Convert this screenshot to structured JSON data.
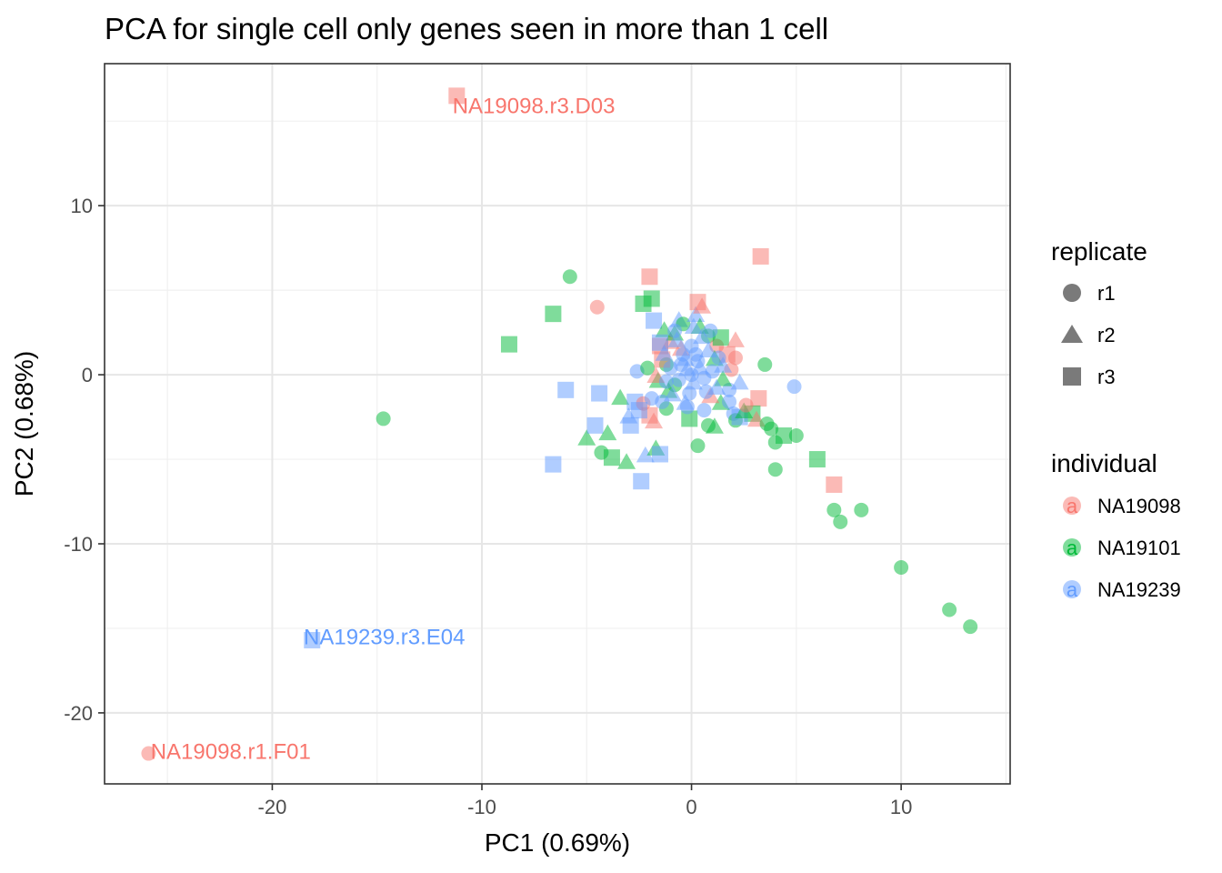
{
  "chart_data": {
    "type": "scatter",
    "title": "PCA for single cell only genes seen in more than 1 cell",
    "xlabel": "PC1 (0.69%)",
    "ylabel": "PC2 (0.68%)",
    "xlim": [
      -28,
      15.2
    ],
    "ylim": [
      -24.2,
      18.4
    ],
    "xticks": [
      -20,
      -10,
      0,
      10
    ],
    "yticks": [
      -20,
      -10,
      0,
      10
    ],
    "xtick_labels": [
      "-20",
      "-10",
      "0",
      "10"
    ],
    "ytick_labels": [
      "-20",
      "-10",
      "0",
      "10"
    ],
    "grid": true,
    "colors": {
      "NA19098": "#F8766D",
      "NA19101": "#00BA38",
      "NA19239": "#619CFF"
    },
    "legend": {
      "position": "right",
      "shape_title": "replicate",
      "shape_items": [
        {
          "key": "r1",
          "label": "r1",
          "shape": "circle"
        },
        {
          "key": "r2",
          "label": "r2",
          "shape": "triangle"
        },
        {
          "key": "r3",
          "label": "r3",
          "shape": "square"
        }
      ],
      "color_title": "individual",
      "color_items": [
        {
          "key": "NA19098",
          "label": "NA19098",
          "glyph": "a"
        },
        {
          "key": "NA19101",
          "label": "NA19101",
          "glyph": "a"
        },
        {
          "key": "NA19239",
          "label": "NA19239",
          "glyph": "a"
        }
      ]
    },
    "annotations": [
      {
        "text": "NA19098.r3.D03",
        "x": -11.4,
        "y": 15.9,
        "color": "NA19098"
      },
      {
        "text": "NA19239.r3.E04",
        "x": -18.5,
        "y": -15.5,
        "color": "NA19239"
      },
      {
        "text": "NA19098.r1.F01",
        "x": -25.8,
        "y": -22.3,
        "color": "NA19098"
      }
    ],
    "points": [
      {
        "x": -11.2,
        "y": 16.5,
        "rep": "r3",
        "ind": "NA19098"
      },
      {
        "x": -18.1,
        "y": -15.7,
        "rep": "r3",
        "ind": "NA19239"
      },
      {
        "x": -25.9,
        "y": -22.4,
        "rep": "r1",
        "ind": "NA19098"
      },
      {
        "x": -14.7,
        "y": -2.6,
        "rep": "r1",
        "ind": "NA19101"
      },
      {
        "x": -8.7,
        "y": 1.8,
        "rep": "r3",
        "ind": "NA19101"
      },
      {
        "x": -6.6,
        "y": 3.6,
        "rep": "r3",
        "ind": "NA19101"
      },
      {
        "x": -5.8,
        "y": 5.8,
        "rep": "r1",
        "ind": "NA19101"
      },
      {
        "x": -4.5,
        "y": 4.0,
        "rep": "r1",
        "ind": "NA19098"
      },
      {
        "x": -6.0,
        "y": -0.9,
        "rep": "r3",
        "ind": "NA19239"
      },
      {
        "x": -6.6,
        "y": -5.3,
        "rep": "r3",
        "ind": "NA19239"
      },
      {
        "x": -4.4,
        "y": -1.1,
        "rep": "r3",
        "ind": "NA19239"
      },
      {
        "x": -5.0,
        "y": -3.8,
        "rep": "r2",
        "ind": "NA19101"
      },
      {
        "x": -4.6,
        "y": -3.0,
        "rep": "r3",
        "ind": "NA19239"
      },
      {
        "x": -4.3,
        "y": -4.6,
        "rep": "r1",
        "ind": "NA19101"
      },
      {
        "x": -4.0,
        "y": -3.5,
        "rep": "r2",
        "ind": "NA19101"
      },
      {
        "x": -3.8,
        "y": -4.9,
        "rep": "r3",
        "ind": "NA19101"
      },
      {
        "x": -3.4,
        "y": -1.4,
        "rep": "r2",
        "ind": "NA19101"
      },
      {
        "x": -3.1,
        "y": -5.2,
        "rep": "r2",
        "ind": "NA19101"
      },
      {
        "x": -3.0,
        "y": -2.5,
        "rep": "r2",
        "ind": "NA19239"
      },
      {
        "x": -2.9,
        "y": -3.0,
        "rep": "r3",
        "ind": "NA19239"
      },
      {
        "x": -2.7,
        "y": -1.6,
        "rep": "r3",
        "ind": "NA19239"
      },
      {
        "x": -2.6,
        "y": 0.2,
        "rep": "r1",
        "ind": "NA19239"
      },
      {
        "x": -2.4,
        "y": -6.3,
        "rep": "r3",
        "ind": "NA19239"
      },
      {
        "x": -2.3,
        "y": 4.2,
        "rep": "r3",
        "ind": "NA19101"
      },
      {
        "x": -2.0,
        "y": 5.8,
        "rep": "r3",
        "ind": "NA19098"
      },
      {
        "x": -1.9,
        "y": 4.5,
        "rep": "r3",
        "ind": "NA19101"
      },
      {
        "x": -1.8,
        "y": 3.2,
        "rep": "r3",
        "ind": "NA19239"
      },
      {
        "x": -2.2,
        "y": -4.8,
        "rep": "r2",
        "ind": "NA19239"
      },
      {
        "x": -1.7,
        "y": -4.4,
        "rep": "r2",
        "ind": "NA19101"
      },
      {
        "x": -1.5,
        "y": -4.7,
        "rep": "r3",
        "ind": "NA19239"
      },
      {
        "x": -1.8,
        "y": -2.8,
        "rep": "r2",
        "ind": "NA19098"
      },
      {
        "x": -2.0,
        "y": -2.4,
        "rep": "r3",
        "ind": "NA19098"
      },
      {
        "x": -2.3,
        "y": -1.7,
        "rep": "r1",
        "ind": "NA19098"
      },
      {
        "x": -2.5,
        "y": -2.1,
        "rep": "r3",
        "ind": "NA19239"
      },
      {
        "x": -1.9,
        "y": -1.4,
        "rep": "r1",
        "ind": "NA19239"
      },
      {
        "x": -1.5,
        "y": 1.7,
        "rep": "r3",
        "ind": "NA19098"
      },
      {
        "x": -1.3,
        "y": 2.6,
        "rep": "r2",
        "ind": "NA19101"
      },
      {
        "x": -1.2,
        "y": -2.0,
        "rep": "r1",
        "ind": "NA19101"
      },
      {
        "x": -1.0,
        "y": 1.9,
        "rep": "r2",
        "ind": "NA19098"
      },
      {
        "x": -0.8,
        "y": 2.4,
        "rep": "r2",
        "ind": "NA19101"
      },
      {
        "x": -0.6,
        "y": 3.2,
        "rep": "r2",
        "ind": "NA19239"
      },
      {
        "x": -0.4,
        "y": 3.0,
        "rep": "r1",
        "ind": "NA19101"
      },
      {
        "x": 0.2,
        "y": 3.5,
        "rep": "r2",
        "ind": "NA19239"
      },
      {
        "x": 0.3,
        "y": 4.3,
        "rep": "r3",
        "ind": "NA19098"
      },
      {
        "x": 0.5,
        "y": 4.0,
        "rep": "r2",
        "ind": "NA19098"
      },
      {
        "x": 0.4,
        "y": 2.8,
        "rep": "r2",
        "ind": "NA19101"
      },
      {
        "x": 0.8,
        "y": 2.3,
        "rep": "r1",
        "ind": "NA19101"
      },
      {
        "x": 1.2,
        "y": 1.7,
        "rep": "r1",
        "ind": "NA19098"
      },
      {
        "x": 1.4,
        "y": 2.2,
        "rep": "r3",
        "ind": "NA19101"
      },
      {
        "x": 1.7,
        "y": 1.2,
        "rep": "r3",
        "ind": "NA19098"
      },
      {
        "x": 2.1,
        "y": 1.0,
        "rep": "r1",
        "ind": "NA19098"
      },
      {
        "x": 2.1,
        "y": 2.0,
        "rep": "r2",
        "ind": "NA19098"
      },
      {
        "x": 3.3,
        "y": 7.0,
        "rep": "r3",
        "ind": "NA19098"
      },
      {
        "x": 3.5,
        "y": 0.6,
        "rep": "r1",
        "ind": "NA19101"
      },
      {
        "x": 4.9,
        "y": -0.7,
        "rep": "r1",
        "ind": "NA19239"
      },
      {
        "x": 3.2,
        "y": -1.4,
        "rep": "r3",
        "ind": "NA19098"
      },
      {
        "x": 2.9,
        "y": -2.3,
        "rep": "r3",
        "ind": "NA19101"
      },
      {
        "x": 3.1,
        "y": -2.7,
        "rep": "r2",
        "ind": "NA19098"
      },
      {
        "x": 3.6,
        "y": -2.9,
        "rep": "r1",
        "ind": "NA19101"
      },
      {
        "x": 3.8,
        "y": -3.2,
        "rep": "r1",
        "ind": "NA19101"
      },
      {
        "x": 4.0,
        "y": -4.0,
        "rep": "r1",
        "ind": "NA19101"
      },
      {
        "x": 4.4,
        "y": -3.6,
        "rep": "r3",
        "ind": "NA19101"
      },
      {
        "x": 5.0,
        "y": -3.6,
        "rep": "r1",
        "ind": "NA19101"
      },
      {
        "x": 4.0,
        "y": -5.6,
        "rep": "r1",
        "ind": "NA19101"
      },
      {
        "x": 6.0,
        "y": -5.0,
        "rep": "r3",
        "ind": "NA19101"
      },
      {
        "x": 6.8,
        "y": -6.5,
        "rep": "r3",
        "ind": "NA19098"
      },
      {
        "x": 6.8,
        "y": -8.0,
        "rep": "r1",
        "ind": "NA19101"
      },
      {
        "x": 7.1,
        "y": -8.7,
        "rep": "r1",
        "ind": "NA19101"
      },
      {
        "x": 8.1,
        "y": -8.0,
        "rep": "r1",
        "ind": "NA19101"
      },
      {
        "x": 10.0,
        "y": -11.4,
        "rep": "r1",
        "ind": "NA19101"
      },
      {
        "x": 12.3,
        "y": -13.9,
        "rep": "r1",
        "ind": "NA19101"
      },
      {
        "x": 13.3,
        "y": -14.9,
        "rep": "r1",
        "ind": "NA19101"
      },
      {
        "x": 0.3,
        "y": -4.2,
        "rep": "r1",
        "ind": "NA19101"
      },
      {
        "x": 0.8,
        "y": -3.0,
        "rep": "r1",
        "ind": "NA19101"
      },
      {
        "x": 1.1,
        "y": -3.1,
        "rep": "r2",
        "ind": "NA19101"
      },
      {
        "x": -0.1,
        "y": -2.6,
        "rep": "r3",
        "ind": "NA19101"
      },
      {
        "x": 2.0,
        "y": -2.3,
        "rep": "r1",
        "ind": "NA19239"
      },
      {
        "x": 2.1,
        "y": -2.7,
        "rep": "r1",
        "ind": "NA19101"
      },
      {
        "x": 2.3,
        "y": -2.5,
        "rep": "r3",
        "ind": "NA19239"
      },
      {
        "x": 2.5,
        "y": -2.2,
        "rep": "r2",
        "ind": "NA19101"
      },
      {
        "x": 2.6,
        "y": -1.8,
        "rep": "r1",
        "ind": "NA19098"
      },
      {
        "x": 1.4,
        "y": -1.7,
        "rep": "r2",
        "ind": "NA19101"
      },
      {
        "x": 1.8,
        "y": -0.9,
        "rep": "r1",
        "ind": "NA19239"
      },
      {
        "x": 2.3,
        "y": -0.5,
        "rep": "r2",
        "ind": "NA19239"
      },
      {
        "x": 1.9,
        "y": 0.3,
        "rep": "r1",
        "ind": "NA19098"
      },
      {
        "x": -1.2,
        "y": 0.6,
        "rep": "r1",
        "ind": "NA19101"
      },
      {
        "x": -1.6,
        "y": -0.4,
        "rep": "r2",
        "ind": "NA19101"
      },
      {
        "x": -2.1,
        "y": 0.4,
        "rep": "r1",
        "ind": "NA19101"
      },
      {
        "x": -1.7,
        "y": -0.1,
        "rep": "r2",
        "ind": "NA19098"
      },
      {
        "x": -1.4,
        "y": 0.9,
        "rep": "r3",
        "ind": "NA19098"
      },
      {
        "x": -1.1,
        "y": -1.0,
        "rep": "r2",
        "ind": "NA19101"
      },
      {
        "x": -0.8,
        "y": -0.6,
        "rep": "r1",
        "ind": "NA19101"
      },
      {
        "x": -0.5,
        "y": 1.5,
        "rep": "r2",
        "ind": "NA19098"
      },
      {
        "x": 1.1,
        "y": 0.9,
        "rep": "r2",
        "ind": "NA19101"
      },
      {
        "x": 1.5,
        "y": -0.3,
        "rep": "r2",
        "ind": "NA19101"
      },
      {
        "x": 0.9,
        "y": -1.3,
        "rep": "r2",
        "ind": "NA19098"
      },
      {
        "x": 0.6,
        "y": -2.1,
        "rep": "r1",
        "ind": "NA19239"
      },
      {
        "x": -0.3,
        "y": -1.7,
        "rep": "r2",
        "ind": "NA19239"
      },
      {
        "x": -1.5,
        "y": 1.9,
        "rep": "r3",
        "ind": "NA19239"
      },
      {
        "x": -1.3,
        "y": 1.2,
        "rep": "r2",
        "ind": "NA19239"
      },
      {
        "x": -1.0,
        "y": 0.4,
        "rep": "r1",
        "ind": "NA19239"
      },
      {
        "x": -0.7,
        "y": 2.0,
        "rep": "r2",
        "ind": "NA19239"
      },
      {
        "x": -0.4,
        "y": 1.2,
        "rep": "r1",
        "ind": "NA19239"
      },
      {
        "x": -0.2,
        "y": 0.3,
        "rep": "r2",
        "ind": "NA19239"
      },
      {
        "x": 0.0,
        "y": 1.7,
        "rep": "r1",
        "ind": "NA19239"
      },
      {
        "x": 0.1,
        "y": -0.5,
        "rep": "r2",
        "ind": "NA19239"
      },
      {
        "x": 0.3,
        "y": 0.8,
        "rep": "r1",
        "ind": "NA19239"
      },
      {
        "x": 0.5,
        "y": 2.2,
        "rep": "r2",
        "ind": "NA19239"
      },
      {
        "x": 0.6,
        "y": -0.2,
        "rep": "r1",
        "ind": "NA19239"
      },
      {
        "x": 0.8,
        "y": 1.4,
        "rep": "r2",
        "ind": "NA19239"
      },
      {
        "x": 1.0,
        "y": 0.2,
        "rep": "r1",
        "ind": "NA19239"
      },
      {
        "x": 1.2,
        "y": -0.8,
        "rep": "r2",
        "ind": "NA19239"
      },
      {
        "x": 1.3,
        "y": 1.0,
        "rep": "r1",
        "ind": "NA19239"
      },
      {
        "x": -0.9,
        "y": -1.2,
        "rep": "r2",
        "ind": "NA19239"
      },
      {
        "x": -0.6,
        "y": -0.3,
        "rep": "r1",
        "ind": "NA19239"
      },
      {
        "x": -0.3,
        "y": 0.9,
        "rep": "r2",
        "ind": "NA19239"
      },
      {
        "x": 0.0,
        "y": 0.0,
        "rep": "r1",
        "ind": "NA19239"
      },
      {
        "x": 0.2,
        "y": 1.2,
        "rep": "r1",
        "ind": "NA19239"
      },
      {
        "x": -0.1,
        "y": -1.1,
        "rep": "r1",
        "ind": "NA19239"
      },
      {
        "x": 0.4,
        "y": 0.4,
        "rep": "r2",
        "ind": "NA19239"
      },
      {
        "x": -0.5,
        "y": 0.6,
        "rep": "r1",
        "ind": "NA19239"
      },
      {
        "x": 0.7,
        "y": -1.0,
        "rep": "r1",
        "ind": "NA19239"
      },
      {
        "x": -1.2,
        "y": -0.4,
        "rep": "r1",
        "ind": "NA19239"
      },
      {
        "x": 1.5,
        "y": 0.5,
        "rep": "r2",
        "ind": "NA19239"
      },
      {
        "x": -0.8,
        "y": 2.6,
        "rep": "r1",
        "ind": "NA19239"
      },
      {
        "x": 0.9,
        "y": 2.6,
        "rep": "r1",
        "ind": "NA19239"
      },
      {
        "x": 1.8,
        "y": -1.6,
        "rep": "r1",
        "ind": "NA19239"
      },
      {
        "x": -1.4,
        "y": -1.6,
        "rep": "r1",
        "ind": "NA19239"
      },
      {
        "x": 0.1,
        "y": 2.8,
        "rep": "r2",
        "ind": "NA19239"
      },
      {
        "x": -0.2,
        "y": -1.9,
        "rep": "r1",
        "ind": "NA19239"
      }
    ]
  }
}
